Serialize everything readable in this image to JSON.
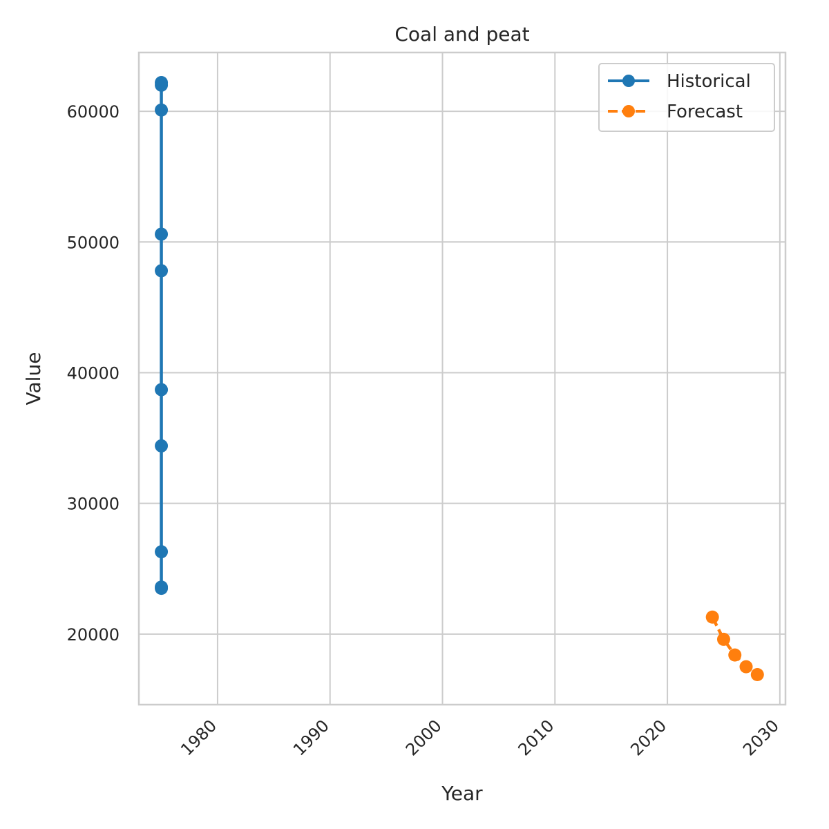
{
  "chart_data": {
    "type": "line",
    "title": "Coal and peat",
    "xlabel": "Year",
    "ylabel": "Value",
    "xlim": [
      1973,
      2030.5
    ],
    "ylim": [
      14600,
      64500
    ],
    "x_ticks": [
      1980,
      1990,
      2000,
      2010,
      2020,
      2030
    ],
    "y_ticks": [
      20000,
      30000,
      40000,
      50000,
      60000
    ],
    "grid": true,
    "legend_position": "top-right",
    "series": [
      {
        "name": "Historical",
        "color": "#1f77b4",
        "line_style": "solid",
        "marker": "circle",
        "x": [
          1975,
          1975,
          1975,
          1975,
          1975,
          1975,
          1975,
          1975,
          1975,
          1975
        ],
        "y": [
          62200,
          62000,
          60100,
          50600,
          47800,
          38700,
          34400,
          26300,
          23500,
          23600
        ]
      },
      {
        "name": "Forecast",
        "color": "#ff7f0e",
        "line_style": "dashed",
        "marker": "circle",
        "x": [
          2024,
          2025,
          2026,
          2027,
          2028
        ],
        "y": [
          21300,
          19600,
          18400,
          17500,
          16900
        ]
      }
    ]
  }
}
